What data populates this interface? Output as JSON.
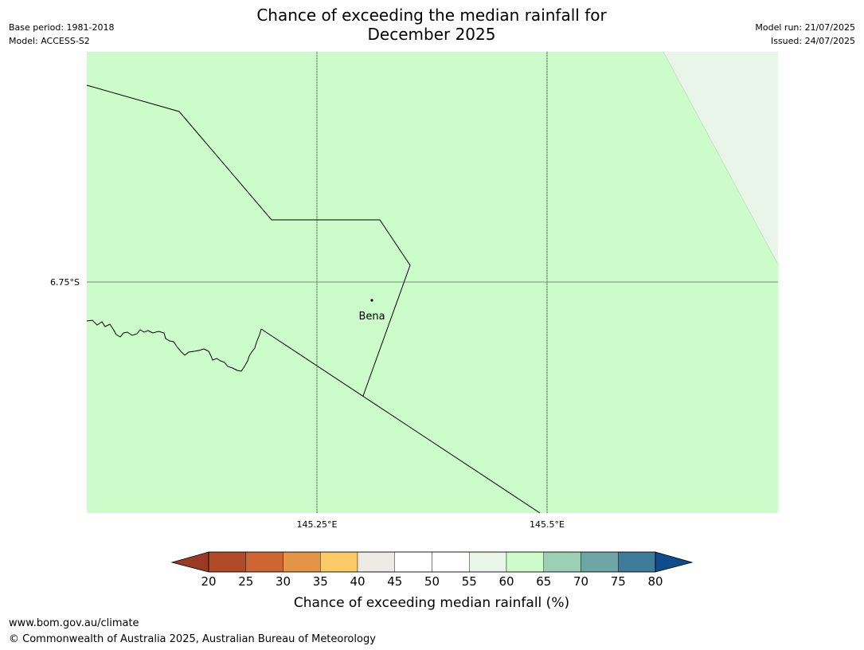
{
  "title_line1": "Chance of exceeding the median rainfall for",
  "title_line2": "December 2025",
  "meta_left": {
    "base_period": "Base period: 1981-2018",
    "model": "Model: ACCESS-S2"
  },
  "meta_right": {
    "model_run": "Model run: 21/07/2025",
    "issued": "Issued: 24/07/2025"
  },
  "map": {
    "lat_label": "6.75°S",
    "lon_labels": [
      "145.25°E",
      "145.5°E"
    ],
    "place": "Bena",
    "colors": {
      "main_fill": "#cbfcca",
      "corner_fill": "#eaf5ea"
    }
  },
  "colorbar": {
    "title": "Chance of exceeding median rainfall (%)",
    "ticks": [
      "20",
      "25",
      "30",
      "35",
      "40",
      "45",
      "50",
      "55",
      "60",
      "65",
      "70",
      "75",
      "80"
    ],
    "under_color": "#9a3a24",
    "over_color": "#0f4c8c",
    "segment_colors": [
      "#b04a27",
      "#cd6633",
      "#e39446",
      "#fdca68",
      "#ede9e4",
      "#ffffff",
      "#ffffff",
      "#e8f5e8",
      "#cbfcca",
      "#9dcfb6",
      "#6ea6a6",
      "#3f7b9b"
    ]
  },
  "footer": {
    "url": "www.bom.gov.au/climate",
    "copyright": "© Commonwealth of Australia 2025, Australian Bureau of Meteorology"
  }
}
